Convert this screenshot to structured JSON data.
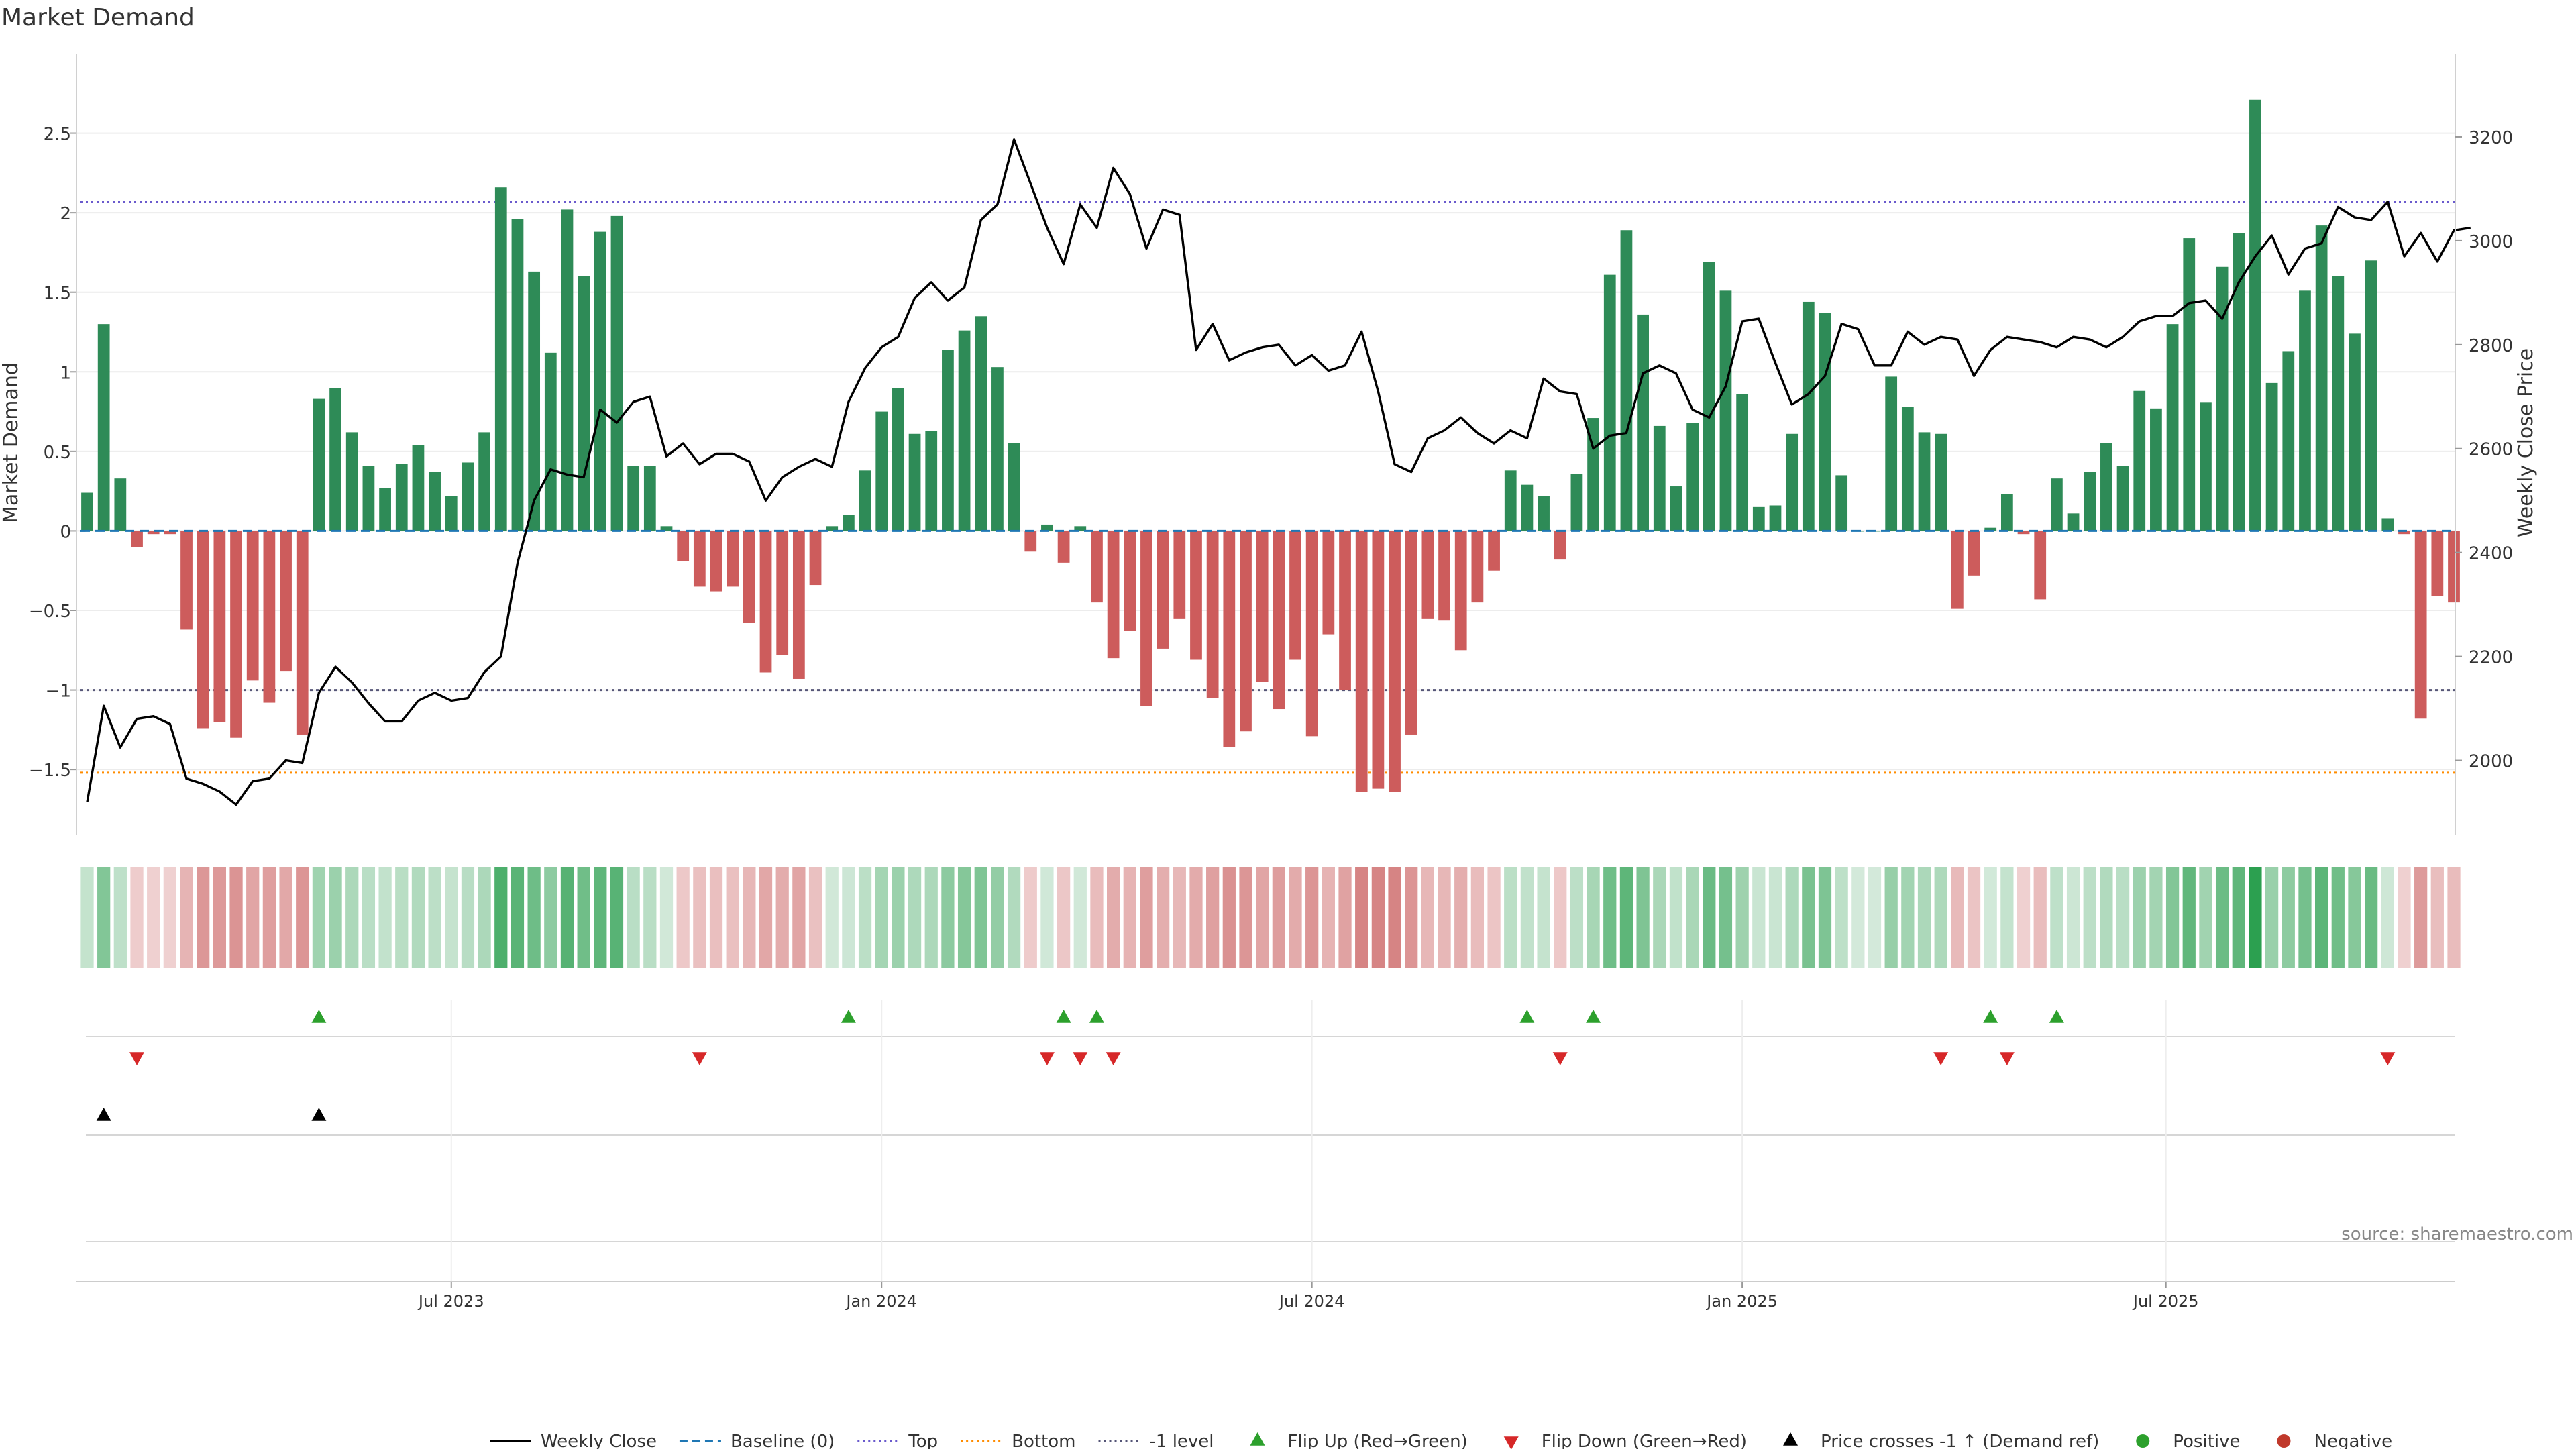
{
  "chart_data": {
    "type": "bar",
    "title": "Market Demand",
    "ylabel": "Market Demand",
    "y2label": "Weekly Close Price",
    "source": "source: sharemaestro.com",
    "ylim": [
      -1.9,
      3.0
    ],
    "y2lim": [
      1860,
      3360
    ],
    "yticks": [
      {
        "v": 2.5,
        "label": "2.5"
      },
      {
        "v": 2,
        "label": "2"
      },
      {
        "v": 1.5,
        "label": "1.5"
      },
      {
        "v": 1,
        "label": "1"
      },
      {
        "v": 0.5,
        "label": "0.5"
      },
      {
        "v": 0,
        "label": "0"
      },
      {
        "v": -0.5,
        "label": "−0.5"
      },
      {
        "v": -1,
        "label": "−1"
      },
      {
        "v": -1.5,
        "label": "−1.5"
      }
    ],
    "y2ticks": [
      {
        "v": 2000,
        "label": "2000"
      },
      {
        "v": 2200,
        "label": "2200"
      },
      {
        "v": 2400,
        "label": "2400"
      },
      {
        "v": 2600,
        "label": "2600"
      },
      {
        "v": 2800,
        "label": "2800"
      },
      {
        "v": 3000,
        "label": "3000"
      },
      {
        "v": 3200,
        "label": "3200"
      }
    ],
    "xticks": [
      {
        "i": 22,
        "label": "Jul 2023"
      },
      {
        "i": 48,
        "label": "Jan 2024"
      },
      {
        "i": 74,
        "label": "Jul 2024"
      },
      {
        "i": 100,
        "label": "Jan 2025"
      },
      {
        "i": 125.6,
        "label": "Jul 2025"
      }
    ],
    "levels": {
      "top": 2.07,
      "bottom": -1.52,
      "minus_one": -1.0
    },
    "colors": {
      "positive": "#2e8b57",
      "negative": "#cd5c5c",
      "price": "#000000",
      "baseline": "#1f77b4",
      "top": "#6a5acd",
      "bottom": "#ff8c00",
      "minus_one": "#555577",
      "flip_up": "#2ca02c",
      "flip_down": "#d62728",
      "cross": "#000000",
      "pos_dot": "#2ca02c",
      "neg_dot": "#c0392b"
    },
    "series": [
      {
        "name": "Market Demand",
        "values": [
          0.24,
          1.3,
          0.33,
          -0.1,
          -0.02,
          -0.02,
          -0.62,
          -1.24,
          -1.2,
          -1.3,
          -0.94,
          -1.08,
          -0.88,
          -1.28,
          0.83,
          0.9,
          0.62,
          0.41,
          0.27,
          0.42,
          0.54,
          0.37,
          0.22,
          0.43,
          0.62,
          2.16,
          1.96,
          1.63,
          1.12,
          2.02,
          1.6,
          1.88,
          1.98,
          0.41,
          0.41,
          0.03,
          -0.19,
          -0.35,
          -0.38,
          -0.35,
          -0.58,
          -0.89,
          -0.78,
          -0.93,
          -0.34,
          0.03,
          0.1,
          0.38,
          0.75,
          0.9,
          0.61,
          0.63,
          1.14,
          1.26,
          1.35,
          1.03,
          0.55,
          -0.13,
          0.04,
          -0.2,
          0.03,
          -0.45,
          -0.8,
          -0.63,
          -1.1,
          -0.74,
          -0.55,
          -0.81,
          -1.05,
          -1.36,
          -1.26,
          -0.95,
          -1.12,
          -0.81,
          -1.29,
          -0.65,
          -1.0,
          -1.64,
          -1.62,
          -1.64,
          -1.28,
          -0.55,
          -0.56,
          -0.75,
          -0.45,
          -0.25,
          0.38,
          0.29,
          0.22,
          -0.18,
          0.36,
          0.71,
          1.61,
          1.89,
          1.36,
          0.66,
          0.28,
          0.68,
          1.69,
          1.51,
          0.86,
          0.15,
          0.16,
          0.61,
          1.44,
          1.37,
          0.35,
          0.0,
          0.0,
          0.97,
          0.78,
          0.62,
          0.61,
          -0.49,
          -0.28,
          0.02,
          0.23,
          -0.02,
          -0.43,
          0.33,
          0.11,
          0.37,
          0.55,
          0.41,
          0.88,
          0.77,
          1.3,
          1.84,
          0.81,
          1.66,
          1.87,
          2.71,
          0.93,
          1.13,
          1.51,
          1.92,
          1.6,
          1.24,
          1.7,
          0.08,
          -0.02,
          -1.18,
          -0.41,
          -0.45
        ]
      },
      {
        "name": "Weekly Close",
        "values": [
          1920,
          2105,
          2025,
          2080,
          2085,
          2070,
          1965,
          1955,
          1940,
          1915,
          1960,
          1965,
          2000,
          1995,
          2130,
          2180,
          2150,
          2110,
          2075,
          2075,
          2115,
          2130,
          2115,
          2120,
          2170,
          2200,
          2380,
          2500,
          2560,
          2550,
          2545,
          2675,
          2650,
          2690,
          2700,
          2585,
          2610,
          2570,
          2590,
          2590,
          2575,
          2500,
          2545,
          2565,
          2580,
          2565,
          2690,
          2755,
          2795,
          2815,
          2890,
          2920,
          2885,
          2910,
          3040,
          3070,
          3195,
          3110,
          3025,
          2955,
          3070,
          3025,
          3140,
          3090,
          2985,
          3060,
          3050,
          2790,
          2840,
          2770,
          2785,
          2795,
          2800,
          2760,
          2780,
          2750,
          2760,
          2825,
          2710,
          2570,
          2555,
          2620,
          2635,
          2660,
          2630,
          2610,
          2635,
          2620,
          2735,
          2710,
          2705,
          2600,
          2625,
          2630,
          2745,
          2760,
          2745,
          2675,
          2660,
          2720,
          2845,
          2850,
          2765,
          2685,
          2705,
          2740,
          2840,
          2830,
          2760,
          2760,
          2825,
          2800,
          2815,
          2810,
          2740,
          2790,
          2815,
          2810,
          2805,
          2795,
          2815,
          2810,
          2795,
          2815,
          2845,
          2855,
          2855,
          2880,
          2885,
          2850,
          2920,
          2970,
          3010,
          2935,
          2985,
          2995,
          3065,
          3045,
          3040,
          3075,
          2970,
          3015,
          2960,
          3020,
          3025
        ]
      }
    ],
    "flip_up": [
      14,
      46,
      59,
      61,
      87,
      91,
      115,
      119
    ],
    "flip_down": [
      3,
      37,
      58,
      60,
      62,
      89,
      112,
      116,
      139
    ],
    "price_cross": [
      1,
      14
    ]
  },
  "legend": [
    {
      "label": "Weekly Close",
      "kind": "solid-line",
      "color": "#000000"
    },
    {
      "label": "Baseline (0)",
      "kind": "dash-line",
      "color": "#1f77b4"
    },
    {
      "label": "Top",
      "kind": "dot-line",
      "color": "#6a5acd"
    },
    {
      "label": "Bottom",
      "kind": "dot-line",
      "color": "#ff8c00"
    },
    {
      "label": "-1 level",
      "kind": "dot-line",
      "color": "#555577"
    },
    {
      "label": "Flip Up (Red→Green)",
      "kind": "tri-up",
      "color": "#2ca02c"
    },
    {
      "label": "Flip Down (Green→Red)",
      "kind": "tri-down",
      "color": "#d62728"
    },
    {
      "label": "Price crosses -1 ↑ (Demand ref)",
      "kind": "tri-up",
      "color": "#000000"
    },
    {
      "label": "Positive",
      "kind": "dot",
      "color": "#2ca02c"
    },
    {
      "label": "Negative",
      "kind": "dot",
      "color": "#c0392b"
    }
  ]
}
